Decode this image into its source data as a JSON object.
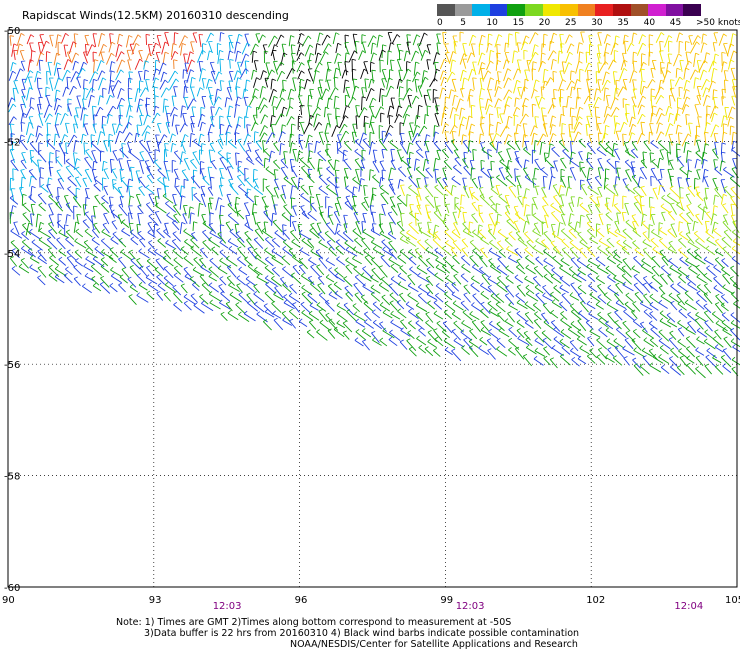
{
  "title": "Rapidscat Winds(12.5KM) 20160310 descending",
  "scale": {
    "colors": [
      "#555555",
      "#9a9a9a",
      "#00b0e8",
      "#1e40e0",
      "#10a010",
      "#7cd820",
      "#f0e800",
      "#f8c000",
      "#f08020",
      "#e82020",
      "#b01010",
      "#a05028",
      "#d020d0",
      "#8010a0",
      "#3a0050"
    ],
    "labels": [
      "0",
      "5",
      "10",
      "15",
      "20",
      "25",
      "30",
      "35",
      "40",
      "45",
      ">50 knots"
    ]
  },
  "axes": {
    "x_ticks": [
      "90",
      "93",
      "96",
      "99",
      "102",
      "105"
    ],
    "y_ticks": [
      "-50",
      "-52",
      "-54",
      "-56",
      "-58",
      "-60"
    ],
    "x_range": [
      90,
      105
    ],
    "y_range": [
      -60,
      -50
    ]
  },
  "times": [
    "12:03",
    "12:03",
    "12:04"
  ],
  "notes": [
    "Note: 1) Times are GMT 2)Times along bottom correspond to measurement at -50S",
    "3)Data buffer is 22 hrs from 20160310 4) Black wind barbs indicate possible contamination",
    "NOAA/NESDIS/Center for Satellite Applications and Research"
  ],
  "colors": {
    "time_label": "#800080"
  }
}
